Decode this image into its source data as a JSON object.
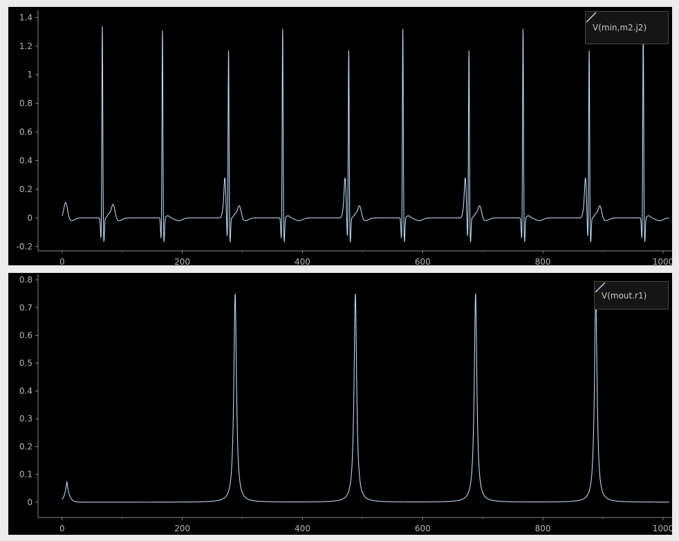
{
  "chart_data": [
    {
      "type": "line",
      "series": [
        {
          "name": "V(min,m2.j2)",
          "color": "#bcd8f5",
          "trace": "ecg"
        }
      ],
      "xlim": [
        -40,
        1015
      ],
      "ylim": [
        -0.23,
        1.45
      ],
      "xticks": [
        0,
        200,
        400,
        600,
        800,
        1000
      ],
      "xtick_labels": [
        "0",
        "200",
        "400",
        "600",
        "800",
        "1000"
      ],
      "yticks": [
        -0.2,
        0,
        0.2,
        0.4,
        0.6,
        0.8,
        1,
        1.2,
        1.4
      ],
      "ytick_labels": [
        "-0.2",
        "0",
        "0.2",
        "0.4",
        "0.6",
        "0.8",
        "1",
        "1.2",
        "1.4"
      ],
      "beats": [
        {
          "x": 67,
          "r": 1.35,
          "q": 0.0,
          "t": 0.1
        },
        {
          "x": 167,
          "r": 1.32,
          "q": 0.0,
          "t": 0.0
        },
        {
          "x": 277,
          "r": 1.18,
          "q": 0.25,
          "t": 0.09
        },
        {
          "x": 367,
          "r": 1.33,
          "q": 0.0,
          "t": 0.0
        },
        {
          "x": 477,
          "r": 1.18,
          "q": 0.25,
          "t": 0.09
        },
        {
          "x": 567,
          "r": 1.33,
          "q": 0.0,
          "t": 0.0
        },
        {
          "x": 677,
          "r": 1.18,
          "q": 0.25,
          "t": 0.09
        },
        {
          "x": 767,
          "r": 1.33,
          "q": 0.0,
          "t": 0.0
        },
        {
          "x": 877,
          "r": 1.18,
          "q": 0.25,
          "t": 0.09
        },
        {
          "x": 967,
          "r": 1.33,
          "q": 0.0,
          "t": 0.0
        }
      ],
      "initial_bump": {
        "x": 6,
        "y": 0.11
      },
      "x_end": 1010
    },
    {
      "type": "line",
      "series": [
        {
          "name": "V(mout.r1)",
          "color": "#bcd8f5",
          "trace": "peaks"
        }
      ],
      "xlim": [
        -40,
        1015
      ],
      "ylim": [
        -0.055,
        0.82
      ],
      "xticks": [
        0,
        200,
        400,
        600,
        800,
        1000
      ],
      "xtick_labels": [
        "0",
        "200",
        "400",
        "600",
        "800",
        "1000"
      ],
      "yticks": [
        0,
        0.1,
        0.2,
        0.3,
        0.4,
        0.5,
        0.6,
        0.7,
        0.8
      ],
      "ytick_labels": [
        "0",
        "0.1",
        "0.2",
        "0.3",
        "0.4",
        "0.5",
        "0.6",
        "0.7",
        "0.8"
      ],
      "peaks": [
        {
          "x": 288,
          "y": 0.75
        },
        {
          "x": 488,
          "y": 0.75
        },
        {
          "x": 688,
          "y": 0.75
        },
        {
          "x": 888,
          "y": 0.75
        }
      ],
      "initial_bump": {
        "x": 8,
        "y": 0.075
      },
      "x_end": 1010
    }
  ]
}
